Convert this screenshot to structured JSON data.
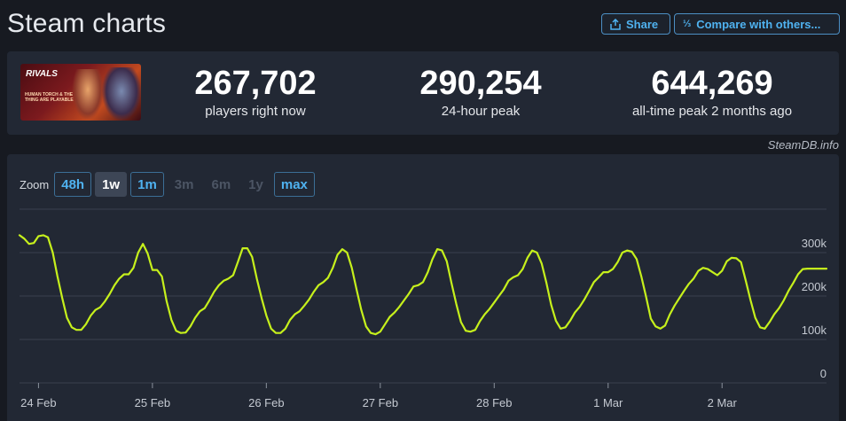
{
  "header": {
    "title": "Steam charts",
    "share_label": "Share",
    "compare_label": "Compare with others..."
  },
  "stats": {
    "current": {
      "value": "267,702",
      "label": "players right now"
    },
    "peak24": {
      "value": "290,254",
      "label": "24-hour peak"
    },
    "alltime": {
      "value": "644,269",
      "label": "all-time peak 2 months ago"
    }
  },
  "banner": {
    "logo_text": "RIVALS",
    "subtitle": "HUMAN TORCH & THE THING ARE PLAYABLE"
  },
  "credit": "SteamDB.info",
  "zoom": {
    "label": "Zoom",
    "options": [
      {
        "label": "48h",
        "state": "link"
      },
      {
        "label": "1w",
        "state": "selected"
      },
      {
        "label": "1m",
        "state": "link"
      },
      {
        "label": "3m",
        "state": "disabled"
      },
      {
        "label": "6m",
        "state": "disabled"
      },
      {
        "label": "1y",
        "state": "disabled"
      },
      {
        "label": "max",
        "state": "link"
      }
    ]
  },
  "colors": {
    "line": "#c6f01c",
    "grid": "#3a414e",
    "panel": "#222834",
    "accent": "#4fb2f0"
  },
  "chart_data": {
    "type": "line",
    "series": [
      {
        "x": [
          0,
          1,
          2,
          3,
          4,
          5,
          6,
          7,
          8,
          9,
          10,
          11,
          12,
          13,
          14,
          15,
          16,
          17,
          18,
          19,
          20,
          21,
          22,
          23,
          24,
          25,
          26,
          27,
          28,
          29,
          30,
          31,
          32,
          33,
          34,
          35,
          36,
          37,
          38,
          39,
          40,
          41,
          42,
          43,
          44,
          45,
          46,
          47,
          48,
          49,
          50,
          51,
          52,
          53,
          54,
          55,
          56,
          57,
          58,
          59,
          60,
          61,
          62,
          63,
          64,
          65,
          66,
          67,
          68,
          69,
          70,
          71,
          72,
          73,
          74,
          75,
          76,
          77,
          78,
          79,
          80,
          81,
          82,
          83,
          84,
          85,
          86,
          87,
          88,
          89,
          90,
          91,
          92,
          93,
          94,
          95,
          96,
          97,
          98,
          99,
          100,
          101,
          102,
          103,
          104,
          105,
          106,
          107,
          108,
          109,
          110,
          111,
          112,
          113,
          114,
          115,
          116,
          117,
          118,
          119,
          120,
          121,
          122,
          123,
          124,
          125,
          126,
          127,
          128,
          129,
          130,
          131,
          132,
          133,
          134,
          135,
          136,
          137,
          138,
          139,
          140,
          141,
          142,
          143,
          144,
          145,
          146,
          147,
          148,
          149,
          150,
          151,
          152,
          153,
          154,
          155,
          156,
          157,
          158,
          159,
          160,
          161,
          162,
          163,
          164,
          165,
          166,
          167,
          168,
          169,
          170
        ],
        "values": [
          340000,
          332000,
          320000,
          322000,
          338000,
          340000,
          335000,
          300000,
          245000,
          195000,
          150000,
          128000,
          122000,
          122000,
          135000,
          155000,
          168000,
          174000,
          188000,
          205000,
          225000,
          240000,
          250000,
          250000,
          265000,
          300000,
          320000,
          298000,
          260000,
          260000,
          245000,
          188000,
          145000,
          120000,
          115000,
          116000,
          130000,
          150000,
          165000,
          172000,
          190000,
          210000,
          225000,
          235000,
          240000,
          248000,
          278000,
          310000,
          310000,
          290000,
          240000,
          195000,
          155000,
          125000,
          115000,
          115000,
          125000,
          145000,
          158000,
          165000,
          178000,
          192000,
          210000,
          225000,
          232000,
          242000,
          265000,
          295000,
          308000,
          300000,
          265000,
          215000,
          168000,
          130000,
          115000,
          112000,
          118000,
          135000,
          152000,
          162000,
          175000,
          190000,
          205000,
          222000,
          225000,
          232000,
          255000,
          285000,
          308000,
          305000,
          280000,
          230000,
          182000,
          140000,
          120000,
          118000,
          122000,
          142000,
          158000,
          170000,
          185000,
          200000,
          215000,
          235000,
          243000,
          248000,
          262000,
          288000,
          305000,
          300000,
          275000,
          230000,
          180000,
          143000,
          125000,
          128000,
          143000,
          162000,
          175000,
          192000,
          212000,
          232000,
          243000,
          255000,
          255000,
          262000,
          278000,
          300000,
          305000,
          302000,
          285000,
          245000,
          198000,
          148000,
          130000,
          125000,
          132000,
          158000,
          178000,
          195000,
          212000,
          228000,
          240000,
          258000,
          265000,
          262000,
          255000,
          248000,
          258000,
          280000,
          288000,
          287000,
          278000,
          235000,
          190000,
          150000,
          128000,
          125000,
          140000,
          158000,
          172000,
          190000,
          212000,
          230000,
          250000,
          262000,
          263000,
          263000,
          263000,
          263000,
          263000
        ]
      }
    ],
    "x_ticks": [
      {
        "x": 4,
        "label": "24 Feb"
      },
      {
        "x": 28,
        "label": "25 Feb"
      },
      {
        "x": 52,
        "label": "26 Feb"
      },
      {
        "x": 76,
        "label": "27 Feb"
      },
      {
        "x": 100,
        "label": "28 Feb"
      },
      {
        "x": 124,
        "label": "1 Mar"
      },
      {
        "x": 148,
        "label": "2 Mar"
      }
    ],
    "y_ticks": [
      {
        "value": 0,
        "label": "0"
      },
      {
        "value": 100000,
        "label": "100k"
      },
      {
        "value": 200000,
        "label": "200k"
      },
      {
        "value": 300000,
        "label": "300k"
      }
    ],
    "xlim": [
      0,
      170
    ],
    "ylim": [
      0,
      400000
    ],
    "grid": true
  }
}
